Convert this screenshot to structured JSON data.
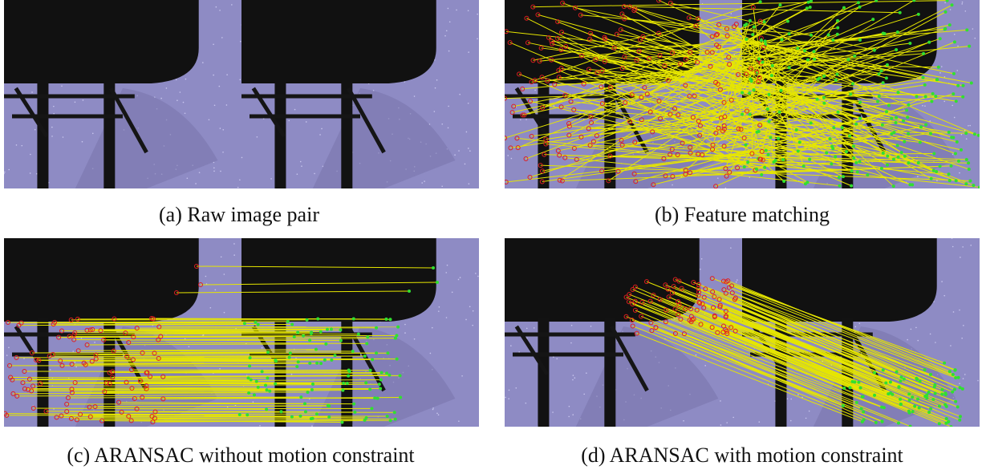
{
  "panels": [
    {
      "caption": "(a) Raw image pair"
    },
    {
      "caption": "(b) Feature matching"
    },
    {
      "caption": "(c) ARANSAC without motion constraint"
    },
    {
      "caption": "(d) ARANSAC with motion constraint"
    }
  ]
}
